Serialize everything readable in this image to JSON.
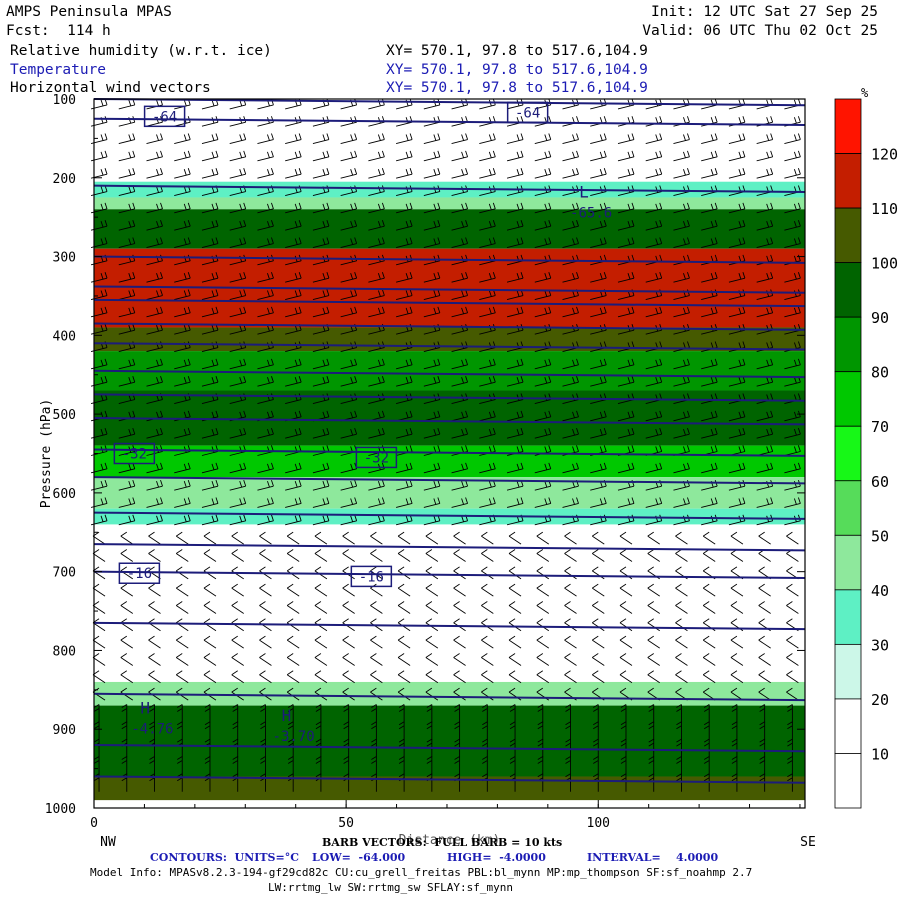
{
  "header": {
    "model": "AMPS Peninsula MPAS",
    "forecast": "Fcst:  114 h",
    "init": "Init: 12 UTC Sat 27 Sep 25",
    "valid": "Valid: 06 UTC Thu 02 Oct 25",
    "fields": [
      {
        "name": "Relative humidity (w.r.t. ice)",
        "xy": "XY= 570.1, 97.8 to 517.6,104.9"
      },
      {
        "name": "Temperature",
        "xy": "XY= 570.1, 97.8 to 517.6,104.9"
      },
      {
        "name": "Horizontal wind vectors",
        "xy": "XY= 570.1, 97.8 to 517.6,104.9"
      }
    ]
  },
  "chart_data": {
    "type": "heatmap",
    "ylabel": "Pressure (hPa)",
    "xlabel": "Distance (km)",
    "x_ticks": [
      0,
      50,
      100
    ],
    "y_ticks": [
      100,
      200,
      300,
      400,
      500,
      600,
      700,
      800,
      900,
      1000
    ],
    "xlim": [
      0,
      141
    ],
    "ylim": [
      100,
      1000
    ],
    "y_inverted": true,
    "left_end_label": "NW",
    "right_end_label": "SE",
    "colorbar": {
      "unit": "%",
      "levels": [
        10,
        20,
        30,
        40,
        50,
        60,
        70,
        80,
        90,
        100,
        110,
        120
      ],
      "colors": [
        "#ffffff",
        "#ffffff",
        "#ccf7e8",
        "#5ef0c4",
        "#8ee89c",
        "#56dc5a",
        "#17f817",
        "#00c800",
        "#009600",
        "#006400",
        "#465a00",
        "#c41e00",
        "#ff1400"
      ]
    },
    "humidity_bands": [
      {
        "p_top": 205,
        "p_bot": 225,
        "value": 30
      },
      {
        "p_top": 225,
        "p_bot": 240,
        "value": 45
      },
      {
        "p_top": 240,
        "p_bot": 290,
        "value": 90
      },
      {
        "p_top": 290,
        "p_bot": 390,
        "value": 115
      },
      {
        "p_top": 390,
        "p_bot": 420,
        "value": 100
      },
      {
        "p_top": 420,
        "p_bot": 470,
        "value": 80
      },
      {
        "p_top": 470,
        "p_bot": 540,
        "value": 90
      },
      {
        "p_top": 540,
        "p_bot": 580,
        "value": 75
      },
      {
        "p_top": 580,
        "p_bot": 620,
        "value": 45
      },
      {
        "p_top": 620,
        "p_bot": 640,
        "value": 30
      },
      {
        "p_top": 840,
        "p_bot": 870,
        "value": 45
      },
      {
        "p_top": 870,
        "p_bot": 960,
        "value": 95
      },
      {
        "p_top": 960,
        "p_bot": 990,
        "value": 105
      }
    ],
    "temperature_contours": [
      -64,
      -32,
      -16
    ],
    "contour_labels": [
      {
        "text": "-64",
        "x": 14,
        "p": 122
      },
      {
        "text": "-64",
        "x": 86,
        "p": 117
      },
      {
        "text": "-32",
        "x": 8,
        "p": 550
      },
      {
        "text": "-32",
        "x": 56,
        "p": 555
      },
      {
        "text": "-16",
        "x": 9,
        "p": 702
      },
      {
        "text": "-16",
        "x": 55,
        "p": 706
      }
    ],
    "extrema": [
      {
        "kind": "L",
        "value": "-65.6",
        "x": 97,
        "p": 240
      },
      {
        "kind": "H",
        "value": "-4.76",
        "x": 10,
        "p": 895
      },
      {
        "kind": "H",
        "value": "-3.70",
        "x": 38,
        "p": 905
      }
    ],
    "barb_note": "BARB VECTORS:  FULL BARB = 10 kts",
    "contour_info": {
      "units": "CONTOURS:  UNITS=°C",
      "low": "LOW=  -64.000",
      "high": "HIGH=  -4.0000",
      "interval": "INTERVAL=    4.0000"
    }
  },
  "footer": {
    "model_info": "Model Info: MPASv8.2.3-194-gf29cd82c CU:cu_grell_freitas PBL:bl_mynn MP:mp_thompson SF:sf_noahmp 2.7",
    "physics": "LW:rrtmg_lw SW:rrtmg_sw SFLAY:sf_mynn"
  }
}
